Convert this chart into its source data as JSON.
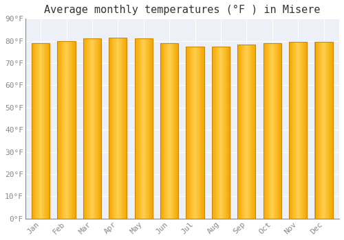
{
  "title": "Average monthly temperatures (°F ) in Misere",
  "months": [
    "Jan",
    "Feb",
    "Mar",
    "Apr",
    "May",
    "Jun",
    "Jul",
    "Aug",
    "Sep",
    "Oct",
    "Nov",
    "Dec"
  ],
  "values": [
    79,
    80,
    81,
    81.5,
    81,
    79,
    77.5,
    77.5,
    78.5,
    79,
    79.5,
    79.5
  ],
  "bar_center_color": "#FFD050",
  "bar_edge_color": "#F5A800",
  "bar_outline_color": "#CC8800",
  "background_color": "#FFFFFF",
  "plot_bg_color": "#EEF0F8",
  "ylim": [
    0,
    90
  ],
  "ytick_step": 10,
  "grid_color": "#FFFFFF",
  "title_fontsize": 11,
  "tick_fontsize": 8,
  "tick_color": "#888888",
  "font_family": "monospace",
  "bar_width": 0.7,
  "n_gradient_slices": 30
}
